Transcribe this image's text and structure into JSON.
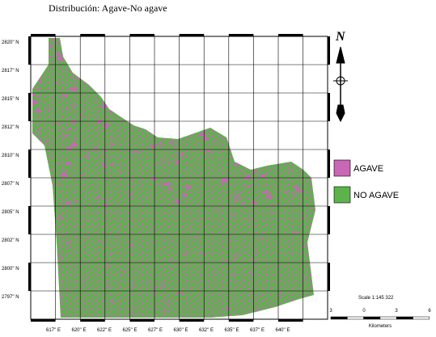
{
  "title": "Distribución: Agave-No agave",
  "map": {
    "y_labels": [
      "2820'' N",
      "2817'' N",
      "2815'' N",
      "2812'' N",
      "2810'' N",
      "2807'' N",
      "2805'' N",
      "2802'' N",
      "2800'' N",
      "2797'' N"
    ],
    "x_labels": [
      "617'' E",
      "620'' E",
      "622'' E",
      "625'' E",
      "627'' E",
      "630'' E",
      "632'' E",
      "635'' E",
      "637'' E",
      "640'' E"
    ]
  },
  "legend": [
    {
      "name": "AGAVE",
      "color": "#c867b4"
    },
    {
      "name": "NO AGAVE",
      "color": "#5cb34c"
    }
  ],
  "scale": {
    "text": "Scale 1:145 322",
    "ticks": [
      "3",
      "0",
      "3",
      "6"
    ],
    "unit": "Kilometers"
  }
}
